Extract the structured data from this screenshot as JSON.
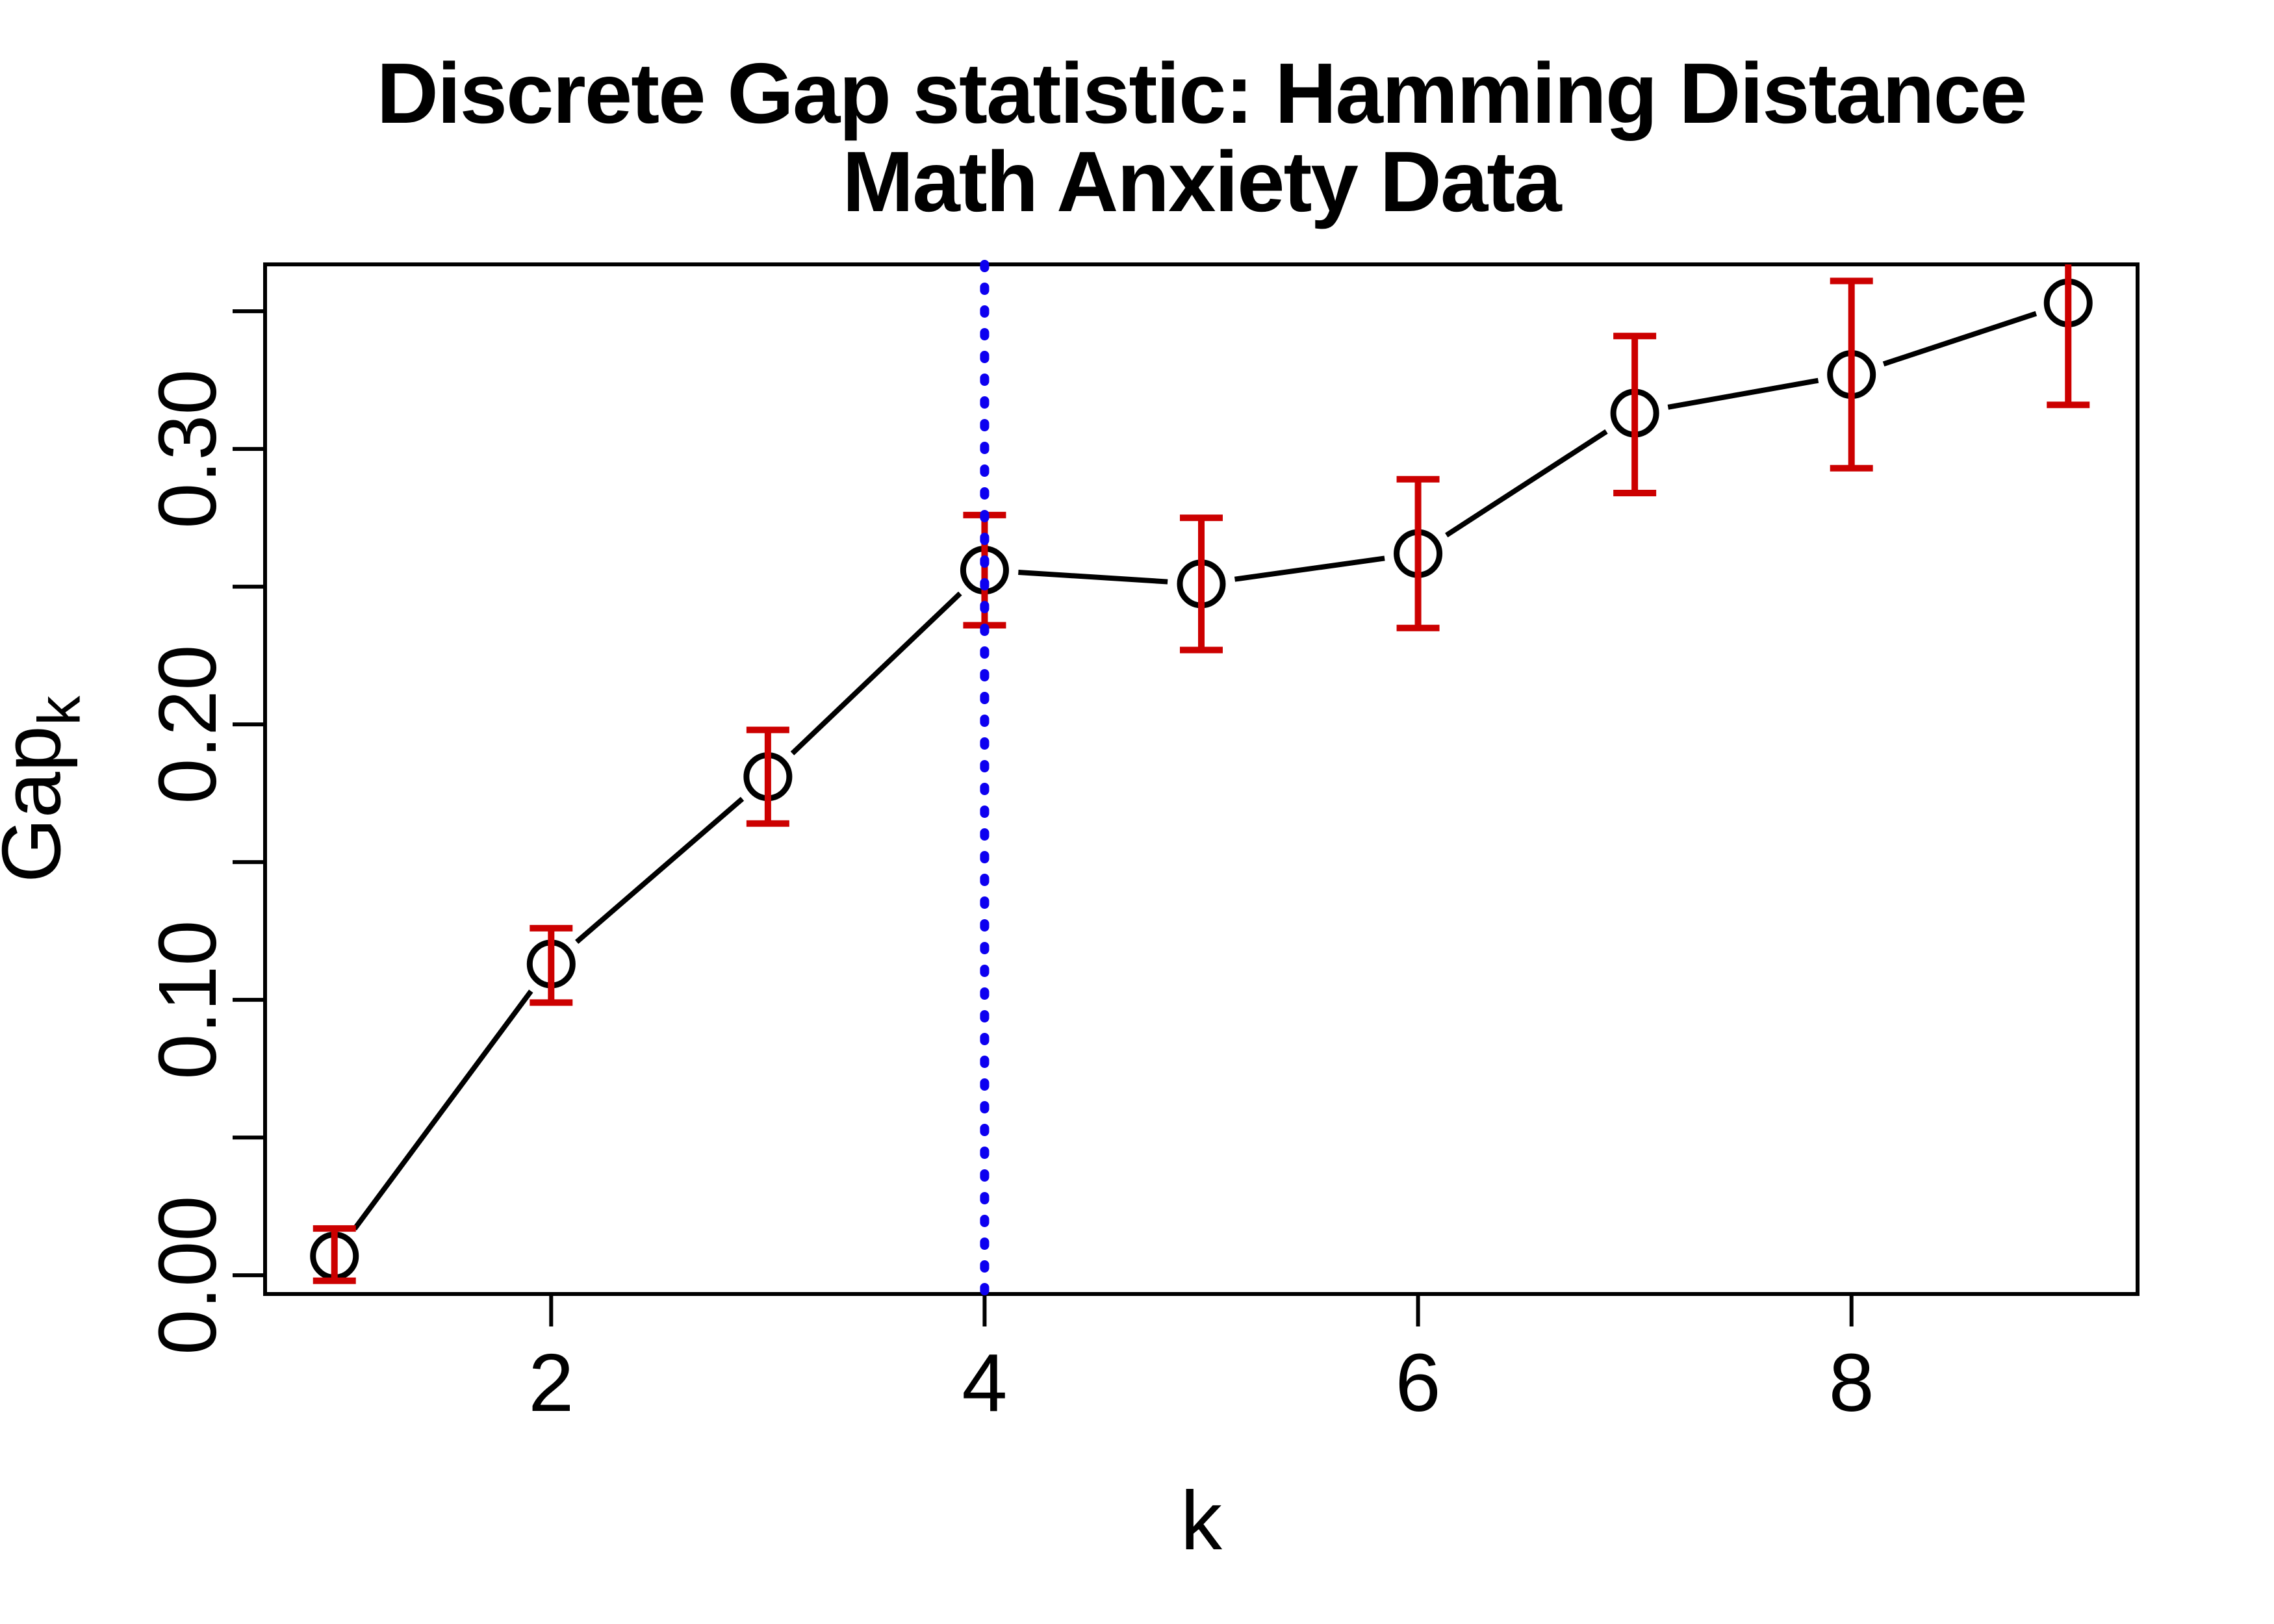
{
  "title": {
    "line1": "Discrete Gap statistic: Hamming Distance",
    "line2": "Math Anxiety Data"
  },
  "labels": {
    "xlabel": "k",
    "ylabel_main": "Gap",
    "ylabel_sub": "k"
  },
  "chart_data": {
    "type": "line",
    "title": "Discrete Gap statistic: Hamming Distance\nMath Anxiety Data",
    "xlabel": "k",
    "ylabel": "Gap_k",
    "x": [
      1,
      2,
      3,
      4,
      5,
      6,
      7,
      8,
      9
    ],
    "series": [
      {
        "name": "Gap_k",
        "marker": "open-circle",
        "values": [
          0.007,
          0.113,
          0.181,
          0.256,
          0.251,
          0.262,
          0.313,
          0.327,
          0.353
        ],
        "error_upper": [
          0.017,
          0.126,
          0.198,
          0.276,
          0.275,
          0.289,
          0.341,
          0.361,
          0.39
        ],
        "error_lower": [
          -0.002,
          0.099,
          0.164,
          0.236,
          0.227,
          0.235,
          0.284,
          0.293,
          0.316
        ]
      }
    ],
    "xlim": [
      0.68,
      9.32
    ],
    "ylim": [
      -0.0068,
      0.367
    ],
    "x_ticks": [
      2,
      4,
      6,
      8
    ],
    "x_tick_labels": [
      "2",
      "4",
      "6",
      "8"
    ],
    "y_ticks": [
      0.0,
      0.05,
      0.1,
      0.15,
      0.2,
      0.25,
      0.3,
      0.35
    ],
    "y_labeled_ticks": [
      {
        "value": 0.0,
        "label": "0.00"
      },
      {
        "value": 0.1,
        "label": "0.10"
      },
      {
        "value": 0.2,
        "label": "0.20"
      },
      {
        "value": 0.3,
        "label": "0.30"
      }
    ],
    "vline": {
      "x": 4,
      "style": "dotted"
    },
    "grid": false,
    "legend": null,
    "colors": {
      "line": "#000000",
      "marker": "#000000",
      "error_bars": "#CC0000",
      "vline": "#0D00F0",
      "axis": "#000000"
    }
  }
}
